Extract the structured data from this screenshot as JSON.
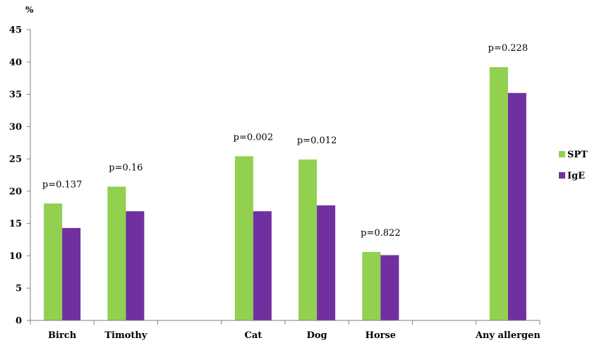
{
  "chart_data": {
    "type": "bar",
    "ylabel": "%",
    "ylim": [
      0,
      45
    ],
    "yticks": [
      "0",
      "5",
      "10",
      "15",
      "20",
      "25",
      "30",
      "35",
      "40",
      "45"
    ],
    "categories": [
      "Birch",
      "Timothy",
      "",
      "Cat",
      "Dog",
      "Horse",
      "",
      "Any allergen"
    ],
    "series": [
      {
        "name": "SPT",
        "color": "#92D050",
        "values": [
          18.1,
          20.7,
          null,
          25.4,
          24.9,
          10.6,
          null,
          39.2
        ]
      },
      {
        "name": "IgE",
        "color": "#7030A0",
        "values": [
          14.3,
          16.9,
          null,
          16.9,
          17.8,
          10.1,
          null,
          35.2
        ]
      }
    ],
    "annotations": [
      "p=0.137",
      "p=0.16",
      "",
      "p=0.002",
      "p=0.012",
      "p=0.822",
      "",
      "p=0.228"
    ],
    "grid": false,
    "legend": "right"
  }
}
